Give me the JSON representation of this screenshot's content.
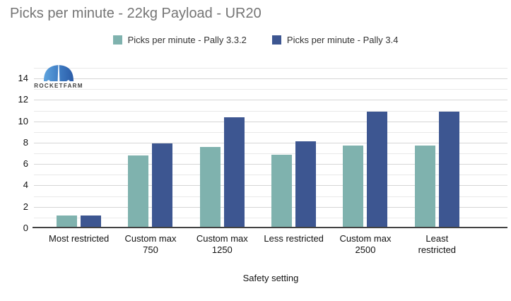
{
  "header": {
    "title": "Picks per minute - 22kg Payload - UR20",
    "title_color": "#757575"
  },
  "legend": {
    "items": [
      {
        "label": "Picks per minute - Pally 3.3.2",
        "color": "#7fb2ae"
      },
      {
        "label": "Picks per minute - Pally 3.4",
        "color": "#3d5691"
      }
    ]
  },
  "logo": {
    "text": "ROCKETFARM",
    "mark_color_left": "#5fa4de",
    "mark_color_right": "#2b5ca7"
  },
  "chart_data": {
    "type": "bar",
    "title": "Picks per minute - 22kg Payload - UR20",
    "categories": [
      "Most restricted",
      "Custom max 750",
      "Custom max 1250",
      "Less restricted",
      "Custom max 2500",
      "Least restricted"
    ],
    "category_display": [
      "Most restricted",
      "Custom max\n750",
      "Custom max\n1250",
      "Less restricted",
      "Custom max\n2500",
      "Least\nrestricted"
    ],
    "series": [
      {
        "name": "Picks per minute - Pally 3.3.2",
        "color": "#7fb2ae",
        "values": [
          1.2,
          6.8,
          7.6,
          6.9,
          7.7,
          7.7
        ]
      },
      {
        "name": "Picks per minute - Pally 3.4",
        "color": "#3d5691",
        "values": [
          1.2,
          7.9,
          10.4,
          8.1,
          10.9,
          10.9
        ]
      }
    ],
    "xlabel": "Safety setting",
    "ylabel": "",
    "ylim": [
      0,
      15
    ],
    "yticks": [
      0,
      2,
      4,
      6,
      8,
      10,
      12,
      14
    ],
    "grid": "horizontal gridlines every 1 unit, darker every 2 units, labels every 2",
    "legend_position": "top",
    "axis_colors": {
      "gridline_minor": "#e9e9e9",
      "gridline_major": "#d6d6d6",
      "baseline": "#424242",
      "tick_text": "#111111"
    }
  }
}
